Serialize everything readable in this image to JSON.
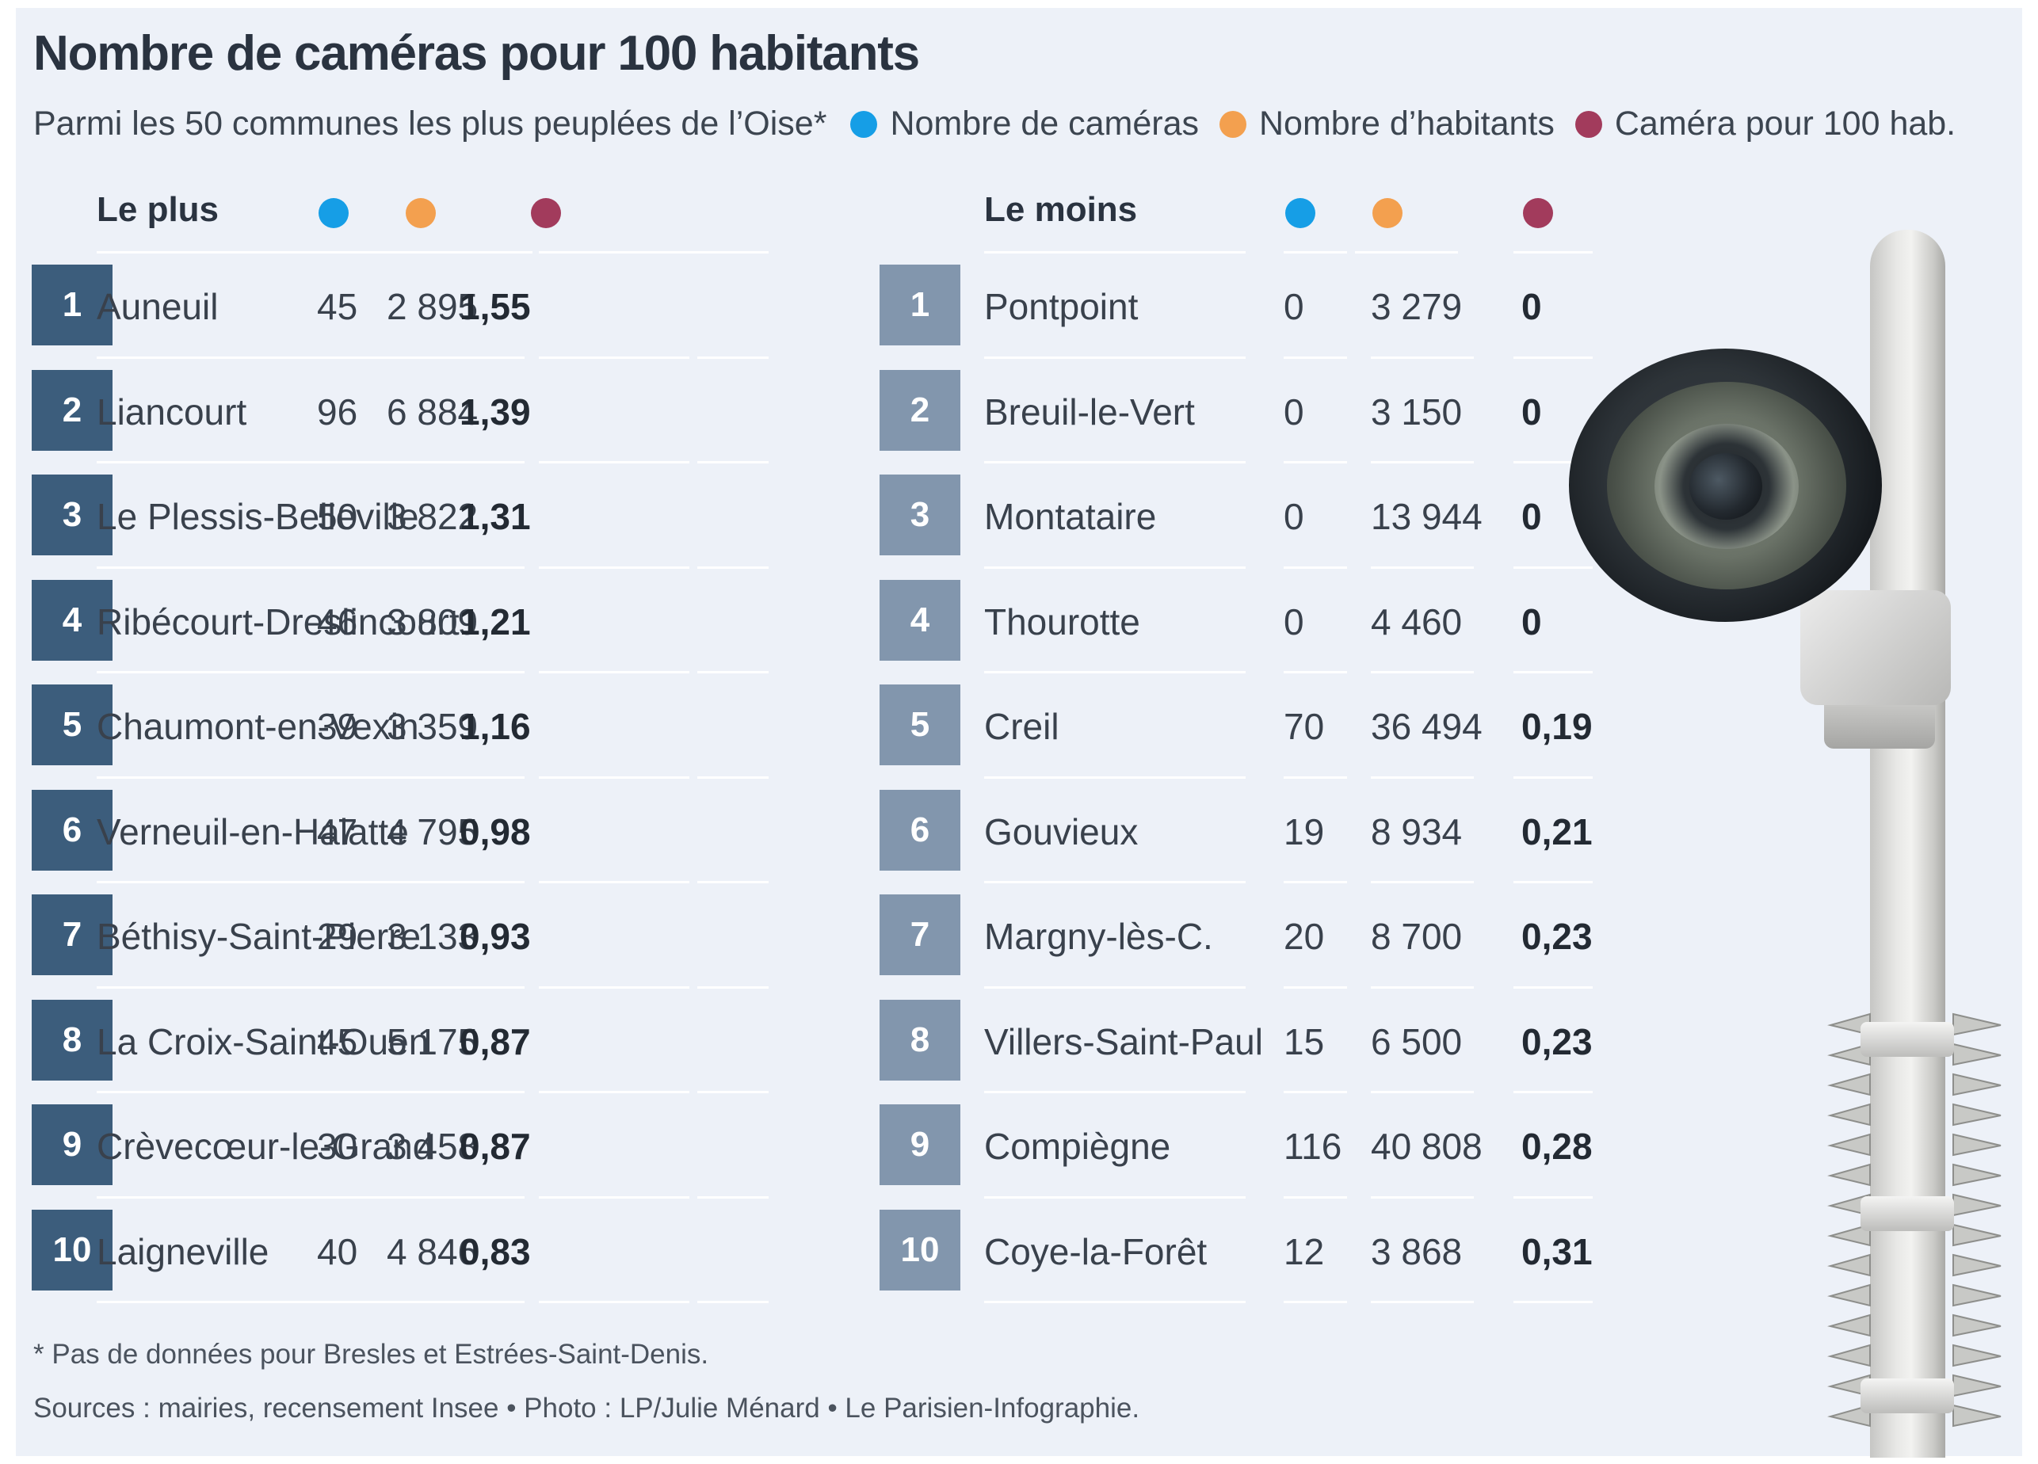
{
  "title": "Nombre de caméras pour 100 habitants",
  "subtitle": "Parmi les 50 communes les plus peuplées de l’Oise*",
  "legend": [
    {
      "label": "Nombre de caméras",
      "color": "#169ee6"
    },
    {
      "label": "Nombre d’habitants",
      "color": "#f3a04f"
    },
    {
      "label": "Caméra pour 100 hab.",
      "color": "#a23b5c"
    }
  ],
  "colors": {
    "rank_most": "#3c5d7c",
    "rank_least": "#8296ad",
    "background": "#edf1f8"
  },
  "chart_data": {
    "type": "table",
    "title": "Nombre de caméras pour 100 habitants",
    "subtitle": "Parmi les 50 communes les plus peuplées de l’Oise*",
    "columns": [
      "Nombre de caméras",
      "Nombre d’habitants",
      "Caméra pour 100 hab."
    ],
    "tables": [
      {
        "heading": "Le plus",
        "rows": [
          {
            "rank": "1",
            "commune": "Auneuil",
            "cameras": "45",
            "habitants": "2 895",
            "ratio": "1,55"
          },
          {
            "rank": "2",
            "commune": "Liancourt",
            "cameras": "96",
            "habitants": "6 884",
            "ratio": "1,39"
          },
          {
            "rank": "3",
            "commune": "Le Plessis-Belleville",
            "cameras": "50",
            "habitants": "3 822",
            "ratio": "1,31"
          },
          {
            "rank": "4",
            "commune": "Ribécourt-Dreslincourt",
            "cameras": "46",
            "habitants": "3 809",
            "ratio": "1,21"
          },
          {
            "rank": "5",
            "commune": "Chaumont-en-Vexin",
            "cameras": "39",
            "habitants": "3 359",
            "ratio": "1,16"
          },
          {
            "rank": "6",
            "commune": "Verneuil-en-Halatte",
            "cameras": "47",
            "habitants": "4 795",
            "ratio": "0,98"
          },
          {
            "rank": "7",
            "commune": "Béthisy-Saint-Pierre",
            "cameras": "29",
            "habitants": "3 133",
            "ratio": "0,93"
          },
          {
            "rank": "8",
            "commune": "La Croix-Saint-Ouen",
            "cameras": "45",
            "habitants": "5 175",
            "ratio": "0,87"
          },
          {
            "rank": "9",
            "commune": "Crèvecœur-le-Grand",
            "cameras": "30",
            "habitants": "3 458",
            "ratio": "0,87"
          },
          {
            "rank": "10",
            "commune": "Laigneville",
            "cameras": "40",
            "habitants": "4 846",
            "ratio": "0,83"
          }
        ]
      },
      {
        "heading": "Le moins",
        "rows": [
          {
            "rank": "1",
            "commune": "Pontpoint",
            "cameras": "0",
            "habitants": "3 279",
            "ratio": "0"
          },
          {
            "rank": "2",
            "commune": "Breuil-le-Vert",
            "cameras": "0",
            "habitants": "3 150",
            "ratio": "0"
          },
          {
            "rank": "3",
            "commune": "Montataire",
            "cameras": "0",
            "habitants": "13 944",
            "ratio": "0"
          },
          {
            "rank": "4",
            "commune": "Thourotte",
            "cameras": "0",
            "habitants": "4 460",
            "ratio": "0"
          },
          {
            "rank": "5",
            "commune": "Creil",
            "cameras": "70",
            "habitants": "36 494",
            "ratio": "0,19"
          },
          {
            "rank": "6",
            "commune": "Gouvieux",
            "cameras": "19",
            "habitants": "8 934",
            "ratio": "0,21"
          },
          {
            "rank": "7",
            "commune": "Margny-lès-C.",
            "cameras": "20",
            "habitants": "8 700",
            "ratio": "0,23"
          },
          {
            "rank": "8",
            "commune": "Villers-Saint-Paul",
            "cameras": "15",
            "habitants": "6 500",
            "ratio": "0,23"
          },
          {
            "rank": "9",
            "commune": "Compiègne",
            "cameras": "116",
            "habitants": "40 808",
            "ratio": "0,28"
          },
          {
            "rank": "10",
            "commune": "Coye-la-Forêt",
            "cameras": "12",
            "habitants": "3 868",
            "ratio": "0,31"
          }
        ]
      }
    ]
  },
  "footnotes": {
    "note": "* Pas de données pour Bresles et Estrées-Saint-Denis.",
    "sources": "Sources : mairies, recensement Insee • Photo : LP/Julie Ménard • Le Parisien-Infographie."
  },
  "photo": {
    "icon": "cctv-camera-photo"
  }
}
